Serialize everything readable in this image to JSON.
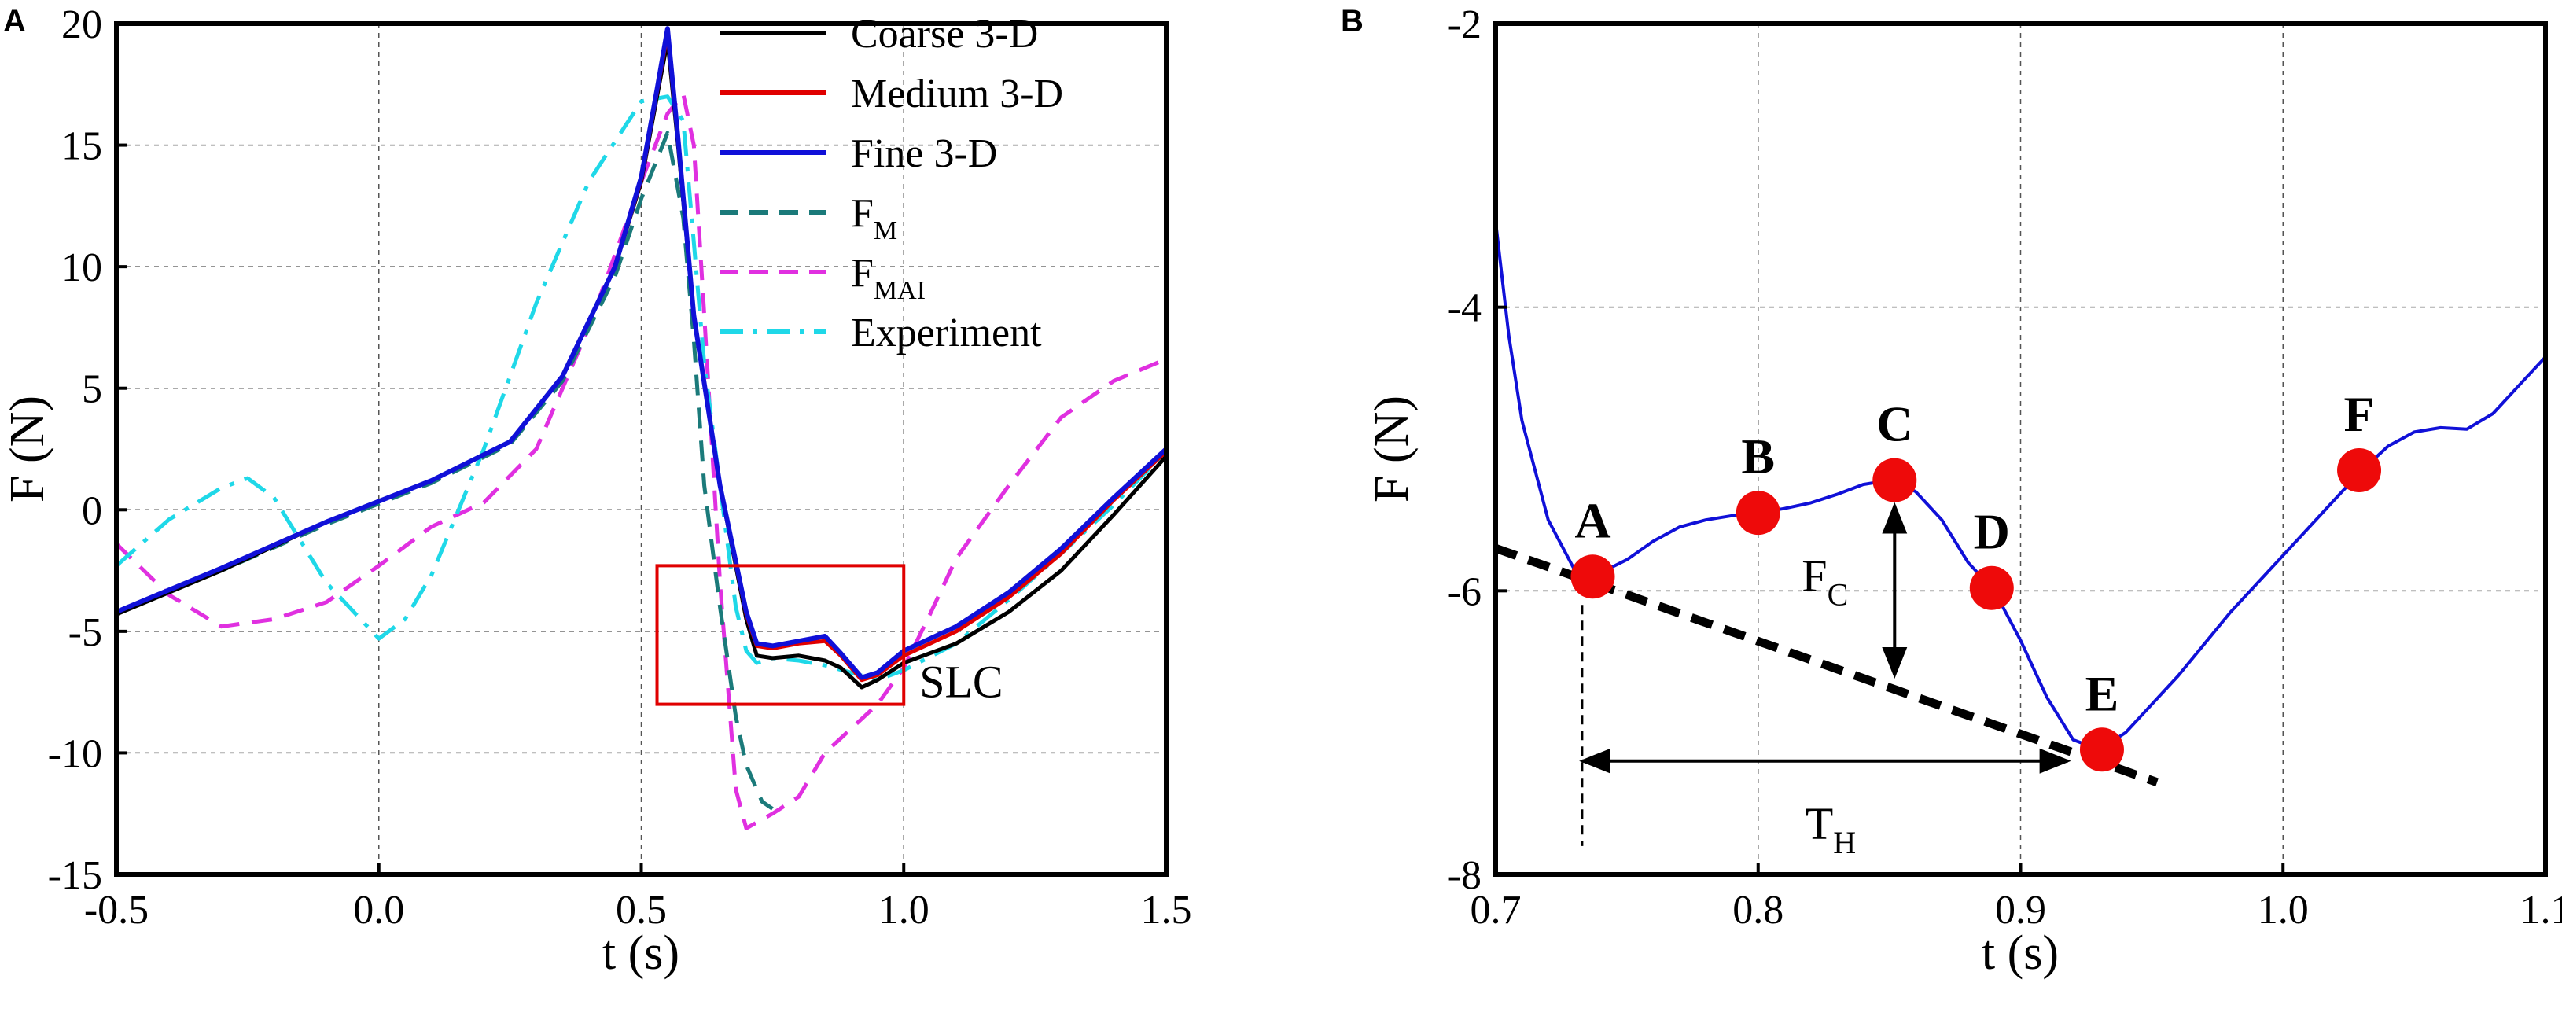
{
  "figure": {
    "panel_labels": [
      "A",
      "B"
    ]
  },
  "chart_data": [
    {
      "type": "line",
      "panel": "A",
      "title": "",
      "xlabel": "t (s)",
      "ylabel": "F (N)",
      "xlim": [
        -0.5,
        1.5
      ],
      "ylim": [
        -15,
        20
      ],
      "xticks": [
        -0.5,
        0.0,
        0.5,
        1.0,
        1.5
      ],
      "xtick_labels": [
        "-0.5",
        "0.0",
        "0.5",
        "1.0",
        "1.5"
      ],
      "yticks": [
        -15,
        -10,
        -5,
        0,
        5,
        10,
        15,
        20
      ],
      "ytick_labels": [
        "-15",
        "-10",
        "-5",
        "0",
        "5",
        "10",
        "15",
        "20"
      ],
      "grid": true,
      "legend_position": "top-right",
      "series": [
        {
          "name": "Coarse 3-D",
          "label_main": "Coarse 3-D",
          "label_sub": "",
          "color": "#000000",
          "dash": "solid",
          "x": [
            -0.5,
            -0.3,
            -0.1,
            0.1,
            0.25,
            0.35,
            0.45,
            0.5,
            0.53,
            0.55,
            0.57,
            0.6,
            0.65,
            0.7,
            0.72,
            0.75,
            0.8,
            0.85,
            0.88,
            0.92,
            0.95,
            1.0,
            1.1,
            1.2,
            1.3,
            1.4,
            1.5
          ],
          "y": [
            -4.3,
            -2.5,
            -0.5,
            1.2,
            2.8,
            5.5,
            10.0,
            13.5,
            17.0,
            19.3,
            15.0,
            8.0,
            1.0,
            -4.5,
            -6.0,
            -6.1,
            -6.0,
            -6.2,
            -6.5,
            -7.3,
            -7.0,
            -6.3,
            -5.5,
            -4.2,
            -2.5,
            -0.2,
            2.2
          ]
        },
        {
          "name": "Medium 3-D",
          "label_main": "Medium 3-D",
          "label_sub": "",
          "color": "#e00000",
          "dash": "solid",
          "x": [
            -0.5,
            -0.3,
            -0.1,
            0.1,
            0.25,
            0.35,
            0.45,
            0.5,
            0.53,
            0.55,
            0.57,
            0.6,
            0.65,
            0.7,
            0.72,
            0.75,
            0.8,
            0.85,
            0.88,
            0.92,
            0.95,
            1.0,
            1.1,
            1.2,
            1.3,
            1.4,
            1.5
          ],
          "y": [
            -4.2,
            -2.4,
            -0.5,
            1.2,
            2.8,
            5.5,
            10.0,
            13.6,
            17.2,
            19.6,
            15.2,
            8.0,
            1.0,
            -4.3,
            -5.6,
            -5.7,
            -5.5,
            -5.4,
            -6.0,
            -7.0,
            -6.8,
            -6.0,
            -5.0,
            -3.6,
            -1.8,
            0.4,
            2.4
          ]
        },
        {
          "name": "Fine 3-D",
          "label_main": "Fine 3-D",
          "label_sub": "",
          "color": "#1010d8",
          "dash": "solid",
          "x": [
            -0.5,
            -0.3,
            -0.1,
            0.1,
            0.25,
            0.35,
            0.45,
            0.5,
            0.53,
            0.55,
            0.57,
            0.6,
            0.65,
            0.7,
            0.72,
            0.75,
            0.8,
            0.85,
            0.88,
            0.92,
            0.95,
            1.0,
            1.1,
            1.2,
            1.3,
            1.4,
            1.5
          ],
          "y": [
            -4.2,
            -2.4,
            -0.5,
            1.2,
            2.8,
            5.5,
            10.0,
            13.7,
            17.3,
            19.8,
            15.3,
            8.0,
            1.0,
            -4.2,
            -5.5,
            -5.6,
            -5.4,
            -5.2,
            -5.9,
            -6.9,
            -6.7,
            -5.8,
            -4.8,
            -3.4,
            -1.6,
            0.5,
            2.5
          ]
        },
        {
          "name": "FM",
          "label_main": "F",
          "label_sub": "M",
          "color": "#1b7a7a",
          "dash": "dashed",
          "x": [
            -0.5,
            -0.3,
            -0.1,
            0.1,
            0.25,
            0.35,
            0.45,
            0.5,
            0.55,
            0.58,
            0.6,
            0.62,
            0.65,
            0.68,
            0.7,
            0.73,
            0.75
          ],
          "y": [
            -4.2,
            -2.5,
            -0.6,
            1.1,
            2.7,
            5.3,
            9.6,
            12.8,
            15.5,
            12.0,
            7.0,
            1.0,
            -4.0,
            -8.5,
            -10.5,
            -12.0,
            -12.3
          ]
        },
        {
          "name": "FMAI",
          "label_main": "F",
          "label_sub": "MAI",
          "color": "#e030e0",
          "dash": "dashed",
          "x": [
            -0.5,
            -0.4,
            -0.3,
            -0.2,
            -0.1,
            0.0,
            0.1,
            0.2,
            0.3,
            0.4,
            0.5,
            0.55,
            0.58,
            0.6,
            0.62,
            0.65,
            0.68,
            0.7,
            0.75,
            0.8,
            0.85,
            0.9,
            0.95,
            1.0,
            1.05,
            1.1,
            1.2,
            1.3,
            1.4,
            1.5
          ],
          "y": [
            -1.4,
            -3.5,
            -4.8,
            -4.5,
            -3.8,
            -2.3,
            -0.7,
            0.3,
            2.5,
            7.5,
            13.5,
            16.3,
            17.1,
            15.0,
            8.0,
            -3.0,
            -11.5,
            -13.1,
            -12.5,
            -11.8,
            -10.0,
            -9.0,
            -8.0,
            -6.5,
            -4.3,
            -2.0,
            1.0,
            3.8,
            5.3,
            6.2
          ]
        },
        {
          "name": "Experiment",
          "label_main": "Experiment",
          "label_sub": "",
          "color": "#1fd8e8",
          "dash": "dashdot",
          "x": [
            -0.5,
            -0.4,
            -0.3,
            -0.25,
            -0.2,
            -0.1,
            0.0,
            0.05,
            0.1,
            0.2,
            0.3,
            0.4,
            0.5,
            0.55,
            0.58,
            0.6,
            0.62,
            0.65,
            0.68,
            0.7,
            0.72,
            0.75,
            0.8,
            0.85,
            0.9,
            0.95,
            1.0,
            1.1,
            1.2,
            1.3,
            1.4,
            1.5
          ],
          "y": [
            -2.3,
            -0.4,
            0.9,
            1.3,
            0.5,
            -3.0,
            -5.3,
            -4.5,
            -2.7,
            2.5,
            8.5,
            13.5,
            16.8,
            17.0,
            16.0,
            11.0,
            6.0,
            1.0,
            -4.0,
            -5.8,
            -6.3,
            -6.1,
            -6.2,
            -6.4,
            -6.7,
            -7.0,
            -6.6,
            -5.5,
            -3.7,
            -1.8,
            0.2,
            2.4
          ]
        }
      ],
      "annotations": [
        {
          "label": "SLC",
          "color": "#e00000",
          "box_x": [
            0.53,
            1.0
          ],
          "box_y": [
            -8.0,
            -2.3
          ]
        }
      ]
    },
    {
      "type": "line",
      "panel": "B",
      "title": "",
      "xlabel": "t (s)",
      "ylabel": "F (N)",
      "xlim": [
        0.7,
        1.1
      ],
      "ylim": [
        -8,
        -2
      ],
      "xticks": [
        0.7,
        0.8,
        0.9,
        1.0,
        1.1
      ],
      "xtick_labels": [
        "0.7",
        "0.8",
        "0.9",
        "1.0",
        "1.1"
      ],
      "yticks": [
        -8,
        -6,
        -4,
        -2
      ],
      "ytick_labels": [
        "-8",
        "-6",
        "-4",
        "-2"
      ],
      "grid": true,
      "series": [
        {
          "name": "Fine 3-D",
          "color": "#1010d8",
          "x": [
            0.7,
            0.705,
            0.71,
            0.72,
            0.73,
            0.737,
            0.75,
            0.76,
            0.77,
            0.78,
            0.79,
            0.8,
            0.81,
            0.82,
            0.83,
            0.84,
            0.85,
            0.86,
            0.87,
            0.88,
            0.89,
            0.9,
            0.91,
            0.92,
            0.93,
            0.94,
            0.96,
            0.98,
            1.0,
            1.02,
            1.03,
            1.04,
            1.05,
            1.06,
            1.07,
            1.08,
            1.09,
            1.1
          ],
          "y": [
            -3.4,
            -4.2,
            -4.8,
            -5.5,
            -5.85,
            -5.9,
            -5.78,
            -5.65,
            -5.55,
            -5.5,
            -5.47,
            -5.45,
            -5.42,
            -5.38,
            -5.32,
            -5.25,
            -5.22,
            -5.3,
            -5.5,
            -5.8,
            -6.0,
            -6.35,
            -6.75,
            -7.05,
            -7.12,
            -7.0,
            -6.6,
            -6.15,
            -5.75,
            -5.35,
            -5.15,
            -4.98,
            -4.88,
            -4.85,
            -4.86,
            -4.75,
            -4.55,
            -4.35
          ]
        }
      ],
      "points": [
        {
          "label": "A",
          "x": 0.737,
          "y": -5.9
        },
        {
          "label": "B",
          "x": 0.8,
          "y": -5.45
        },
        {
          "label": "C",
          "x": 0.852,
          "y": -5.22
        },
        {
          "label": "D",
          "x": 0.889,
          "y": -5.98
        },
        {
          "label": "E",
          "x": 0.931,
          "y": -7.12
        },
        {
          "label": "F",
          "x": 1.029,
          "y": -5.15
        }
      ],
      "trend_line": {
        "x": [
          0.7,
          0.952
        ],
        "y": [
          -5.7,
          -7.35
        ]
      },
      "annotations": [
        {
          "label_main": "F",
          "label_sub": "C",
          "arrow_x": 0.852,
          "y_from": -5.22,
          "y_to": -6.63
        },
        {
          "label_main": "T",
          "label_sub": "H",
          "x_from": 0.733,
          "x_to": 0.93,
          "y": -7.2,
          "guide_x": 0.733,
          "guide_y": [
            -5.9,
            -7.8
          ]
        }
      ]
    }
  ]
}
